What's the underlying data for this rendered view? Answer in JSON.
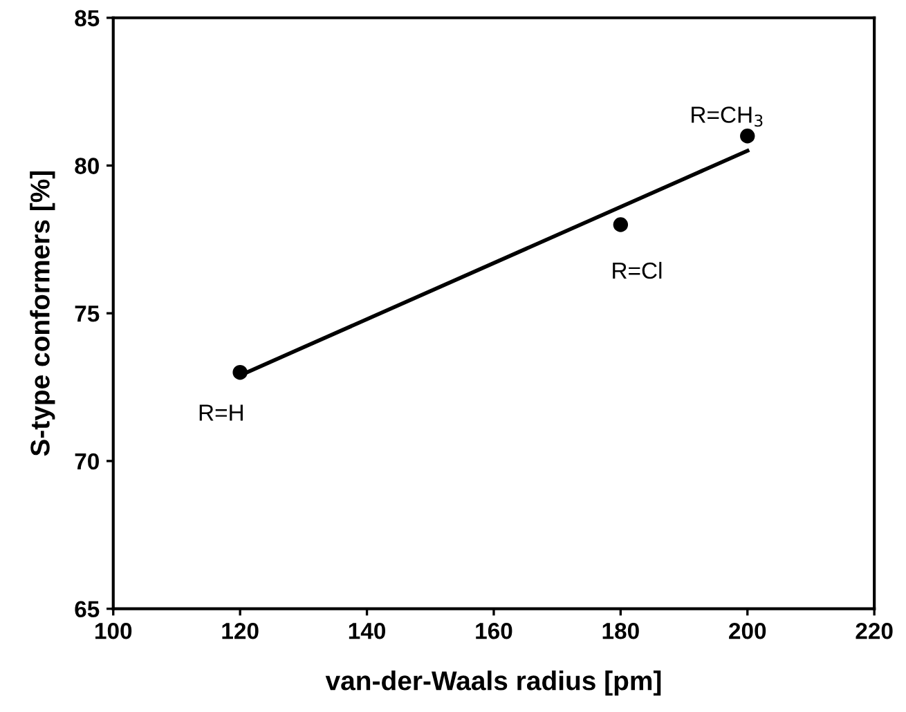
{
  "chart_data": {
    "type": "scatter",
    "xlabel": "van-der-Waals radius [pm]",
    "ylabel": "S-type conformers [%]",
    "series": [
      {
        "color": "#000000",
        "x": [
          120,
          180,
          200
        ],
        "values": [
          73,
          78,
          81
        ],
        "marker": "circle"
      },
      {
        "type": "line",
        "color": "#000000",
        "x": [
          120,
          200
        ],
        "values": [
          72.9,
          80.5
        ],
        "marker": "none",
        "line_style": "solid"
      }
    ],
    "annotations": [
      {
        "text": "R=H",
        "x": 120,
        "y": 73
      },
      {
        "text": "R=Cl",
        "x": 180,
        "y": 78
      },
      {
        "text": "R=CH$_{3}$",
        "x": 200,
        "y": 81
      }
    ],
    "xlim": [
      100,
      220
    ],
    "xticks": [
      100,
      120,
      140,
      160,
      180,
      200,
      220
    ],
    "ylim": [
      65,
      85
    ],
    "yticks": [
      65,
      70,
      75,
      80,
      85
    ],
    "grid": false,
    "legend": false
  }
}
